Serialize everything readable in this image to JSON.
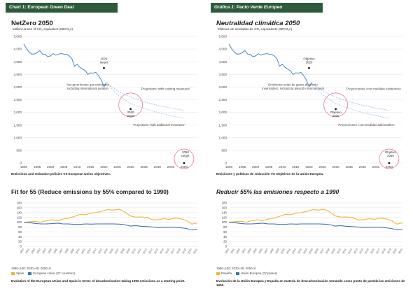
{
  "colors": {
    "tag_bg": "#2e5a3c",
    "main_line": "#4a86c8",
    "proj_line": "#9dc3e6",
    "target_circle": "#e46a9c",
    "spain": "#f0b43c",
    "eu": "#3e73b8"
  },
  "panels": [
    {
      "tag": "Chart 1: European Green Deal",
      "title1": "NetZero 2050",
      "caption1": "Emissions and reduction policies VS European Union objectives.",
      "title2": "Fit for 55 (Reduce emissions by 55% compared to 1990)",
      "note2": "1990=100; 2030=45; 2050=0",
      "legend": [
        "Spain",
        "European Union (27 countries)"
      ],
      "caption2": "Evolution of the European Union and Spain in terms of decarbonisation taking 1990 emissions as a starting point."
    },
    {
      "tag": "Gráfica 1: Pacto Verde Europeo",
      "title1": "Neutralidad climática 2050",
      "caption1": "Emisiones y políticas de reducción VS Objetivos de la Unión Europea.",
      "title2": "Reducir 55% las emisiones respecto a 1990",
      "note2": "1990=100; 2030=45; 2050=0",
      "legend": [
        "España",
        "Unión Europea (27 países)"
      ],
      "caption2": "Evolución de la Unión Europea y España en materia de descarbonización tomando como punto de partida las emisiones de 1990."
    }
  ],
  "chart_data": [
    {
      "type": "line",
      "lang": "en",
      "ylabel": "Million tonnes of CO₂ equivalent (MtCO₂e)",
      "xlim": [
        1990,
        2055
      ],
      "ylim": [
        0,
        5000
      ],
      "x_ticks": [
        1990,
        1995,
        2000,
        2005,
        2010,
        2015,
        2020,
        2025,
        2030,
        2035,
        2040,
        2045,
        2050
      ],
      "y_ticks": [
        "0",
        "500",
        "1,000",
        "1,500",
        "2,000",
        "2,500",
        "3,000",
        "3,500",
        "4,000",
        "4,500",
        "5,000"
      ],
      "grid": true,
      "series": [
        {
          "name": "Net greenhouse gas emissions including international aviation",
          "x": [
            1990,
            1991,
            1992,
            1993,
            1994,
            1995,
            1996,
            1997,
            1998,
            1999,
            2000,
            2001,
            2002,
            2003,
            2004,
            2005,
            2006,
            2007,
            2008,
            2009,
            2010,
            2011,
            2012,
            2013,
            2014,
            2015,
            2016,
            2017,
            2018,
            2019,
            2020,
            2021
          ],
          "y": [
            4700,
            4520,
            4380,
            4300,
            4310,
            4360,
            4440,
            4300,
            4290,
            4200,
            4230,
            4320,
            4260,
            4300,
            4320,
            4300,
            4290,
            4230,
            4120,
            3820,
            3900,
            3780,
            3710,
            3650,
            3500,
            3560,
            3550,
            3580,
            3450,
            3280,
            3020,
            3180
          ]
        },
        {
          "name": "Projections “with existing measures”",
          "x": [
            2021,
            2025,
            2030,
            2035,
            2040,
            2045,
            2050
          ],
          "y": [
            3180,
            2850,
            2600,
            2420,
            2280,
            2170,
            2080
          ]
        },
        {
          "name": "Projections “with additional measures”",
          "x": [
            2021,
            2025,
            2030,
            2035,
            2040,
            2045,
            2050
          ],
          "y": [
            3180,
            2700,
            2350,
            2150,
            2000,
            1870,
            1760
          ]
        }
      ],
      "targets": [
        {
          "label": "2020 target",
          "x": 2020,
          "y": 3750,
          "circle": false
        },
        {
          "label": "2030 target",
          "x": 2030,
          "y": 2130,
          "circle": true
        },
        {
          "label": "2050 target",
          "x": 2050,
          "y": 0,
          "circle": true
        }
      ],
      "annotations": [
        "Net greenhouse gas emissions including international aviation",
        "Projections “with existing measures”",
        "Projections “with additional measures”"
      ]
    },
    {
      "type": "line",
      "lang": "es",
      "ylabel": "Millones de toneladas de CO₂ equivalente (MtCO₂e)",
      "xlim": [
        1990,
        2055
      ],
      "ylim": [
        0,
        5000
      ],
      "x_ticks": [
        1990,
        1995,
        2000,
        2005,
        2010,
        2015,
        2020,
        2025,
        2030,
        2035,
        2040,
        2045,
        2050
      ],
      "y_ticks": [
        "0",
        "500",
        "1,000",
        "1,500",
        "2,000",
        "2,500",
        "3,000",
        "3,500",
        "4,000",
        "4,500",
        "5,000"
      ],
      "grid": true,
      "series": [
        {
          "name": "Emisiones netas de gases de efecto invernadero, incluida la aviación internacional",
          "x": [
            1990,
            1991,
            1992,
            1993,
            1994,
            1995,
            1996,
            1997,
            1998,
            1999,
            2000,
            2001,
            2002,
            2003,
            2004,
            2005,
            2006,
            2007,
            2008,
            2009,
            2010,
            2011,
            2012,
            2013,
            2014,
            2015,
            2016,
            2017,
            2018,
            2019,
            2020,
            2021
          ],
          "y": [
            4700,
            4520,
            4380,
            4300,
            4310,
            4360,
            4440,
            4300,
            4290,
            4200,
            4230,
            4320,
            4260,
            4300,
            4320,
            4300,
            4290,
            4230,
            4120,
            3820,
            3900,
            3780,
            3710,
            3650,
            3500,
            3560,
            3550,
            3580,
            3450,
            3280,
            3020,
            3180
          ]
        },
        {
          "name": "Proyecciones «con medidas existentes»",
          "x": [
            2021,
            2025,
            2030,
            2035,
            2040,
            2045,
            2050
          ],
          "y": [
            3180,
            2850,
            2600,
            2420,
            2280,
            2170,
            2080
          ]
        },
        {
          "name": "Proyecciones «con medidas adicionales»",
          "x": [
            2021,
            2025,
            2030,
            2035,
            2040,
            2045,
            2050
          ],
          "y": [
            3180,
            2700,
            2350,
            2150,
            2000,
            1870,
            1760
          ]
        }
      ],
      "targets": [
        {
          "label": "Objetivo 2020",
          "x": 2020,
          "y": 3750,
          "circle": false
        },
        {
          "label": "Objetivo 2030",
          "x": 2030,
          "y": 2130,
          "circle": true
        },
        {
          "label": "Objetivo 2050",
          "x": 2050,
          "y": 0,
          "circle": true
        }
      ],
      "annotations": [
        "Emisiones netas de gases de efecto invernadero, incluida la aviación internacional",
        "Proyecciones «con medidas existentes»",
        "Proyecciones «con medidas adicionales»"
      ]
    },
    {
      "type": "line",
      "lang": "en",
      "ylim": [
        0,
        180
      ],
      "y_ticks": [
        0,
        20,
        40,
        60,
        80,
        100,
        120,
        140,
        160,
        180
      ],
      "grid": true,
      "categories": [
        1990,
        1991,
        1992,
        1993,
        1994,
        1995,
        1996,
        1997,
        1998,
        1999,
        2000,
        2001,
        2002,
        2003,
        2004,
        2005,
        2006,
        2007,
        2008,
        2009,
        2010,
        2011,
        2012,
        2013,
        2014,
        2015,
        2016,
        2017,
        2018,
        2019,
        2020,
        2021
      ],
      "series": [
        {
          "name": "Spain",
          "values": [
            100,
            102,
            104,
            100,
            106,
            110,
            106,
            113,
            116,
            124,
            132,
            131,
            138,
            140,
            146,
            152,
            150,
            154,
            143,
            126,
            121,
            122,
            120,
            110,
            110,
            115,
            112,
            117,
            114,
            107,
            92,
            97
          ]
        },
        {
          "name": "European Union (27 countries)",
          "values": [
            100,
            98,
            95,
            93,
            93,
            94,
            96,
            93,
            93,
            91,
            91,
            93,
            92,
            93,
            93,
            93,
            93,
            92,
            90,
            84,
            86,
            83,
            82,
            80,
            78,
            79,
            79,
            79,
            77,
            74,
            68,
            71
          ]
        }
      ]
    },
    {
      "type": "line",
      "lang": "es",
      "ylim": [
        0,
        180
      ],
      "y_ticks": [
        0,
        20,
        40,
        60,
        80,
        100,
        120,
        140,
        160,
        180
      ],
      "grid": true,
      "categories": [
        1990,
        1991,
        1992,
        1993,
        1994,
        1995,
        1996,
        1997,
        1998,
        1999,
        2000,
        2001,
        2002,
        2003,
        2004,
        2005,
        2006,
        2007,
        2008,
        2009,
        2010,
        2011,
        2012,
        2013,
        2014,
        2015,
        2016,
        2017,
        2018,
        2019,
        2020,
        2021
      ],
      "series": [
        {
          "name": "España",
          "values": [
            100,
            102,
            104,
            100,
            106,
            110,
            106,
            113,
            116,
            124,
            132,
            131,
            138,
            140,
            146,
            152,
            150,
            154,
            143,
            126,
            121,
            122,
            120,
            110,
            110,
            115,
            112,
            117,
            114,
            107,
            92,
            97
          ]
        },
        {
          "name": "Unión Europea (27 países)",
          "values": [
            100,
            98,
            95,
            93,
            93,
            94,
            96,
            93,
            93,
            91,
            91,
            93,
            92,
            93,
            93,
            93,
            93,
            92,
            90,
            84,
            86,
            83,
            82,
            80,
            78,
            79,
            79,
            79,
            77,
            74,
            68,
            71
          ]
        }
      ]
    }
  ]
}
